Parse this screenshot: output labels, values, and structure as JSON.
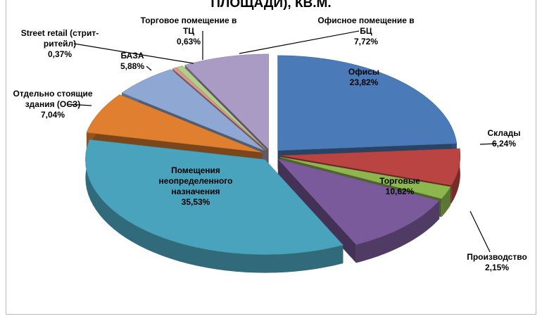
{
  "chart_data": {
    "type": "pie",
    "title": "ПЛОЩАДИ), КВ.М.",
    "categories": [
      "Офисы",
      "Склады",
      "Производство",
      "Торговые",
      "Помещения неопределенного назначения",
      "Отдельно стоящие здания (ОСЗ)",
      "БАЗА",
      "Street retail (стрит-ритейл)",
      "Торговое помещение в ТЦ",
      "Офисное помещение в БЦ"
    ],
    "values": [
      23.82,
      6.24,
      2.15,
      10.62,
      35.53,
      7.04,
      5.88,
      0.37,
      0.63,
      7.72
    ],
    "value_labels": [
      "23,82%",
      "6,24%",
      "2,15%",
      "10,62%",
      "35,53%",
      "7,04%",
      "5,88%",
      "0,37%",
      "0,63%",
      "7,72%"
    ],
    "colors": [
      "#4a7ab8",
      "#b94441",
      "#8db64f",
      "#7b5a9c",
      "#4aa3bd",
      "#e07f30",
      "#8ea8d3",
      "#d89694",
      "#b3cf87",
      "#a99bc4"
    ]
  }
}
